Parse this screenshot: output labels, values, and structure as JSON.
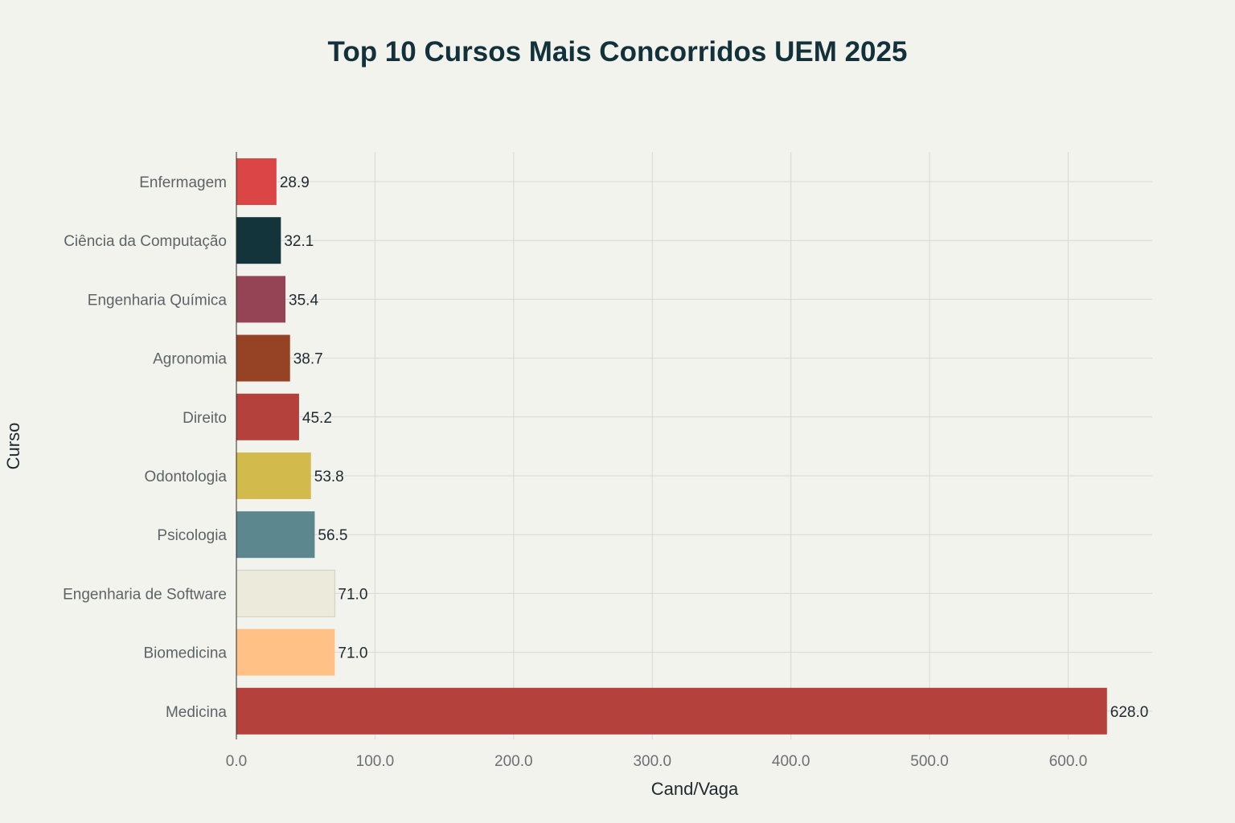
{
  "chart_data": {
    "type": "bar",
    "orientation": "horizontal",
    "title": "Top 10 Cursos Mais Concorridos UEM 2025",
    "xlabel": "Cand/Vaga",
    "ylabel": "Curso",
    "xlim": [
      0,
      660
    ],
    "xticks": [
      0,
      100,
      200,
      300,
      400,
      500,
      600
    ],
    "xtick_labels": [
      "0.0",
      "100.0",
      "200.0",
      "300.0",
      "400.0",
      "500.0",
      "600.0"
    ],
    "grid": true,
    "categories": [
      "Enfermagem",
      "Ciência da Computação",
      "Engenharia Química",
      "Agronomia",
      "Direito",
      "Odontologia",
      "Psicologia",
      "Engenharia de Software",
      "Biomedicina",
      "Medicina"
    ],
    "values": [
      28.9,
      32.1,
      35.4,
      38.7,
      45.2,
      53.8,
      56.5,
      71.0,
      71.0,
      628.0
    ],
    "value_labels": [
      "28.9",
      "32.1",
      "35.4",
      "38.7",
      "45.2",
      "53.8",
      "56.5",
      "71.0",
      "71.0",
      "628.0"
    ],
    "colors": [
      "#db4545",
      "#13343b",
      "#944454",
      "#964325",
      "#b4413c",
      "#d2ba4c",
      "#5d878f",
      "#eceadb",
      "#ffc185",
      "#b4413c"
    ]
  }
}
